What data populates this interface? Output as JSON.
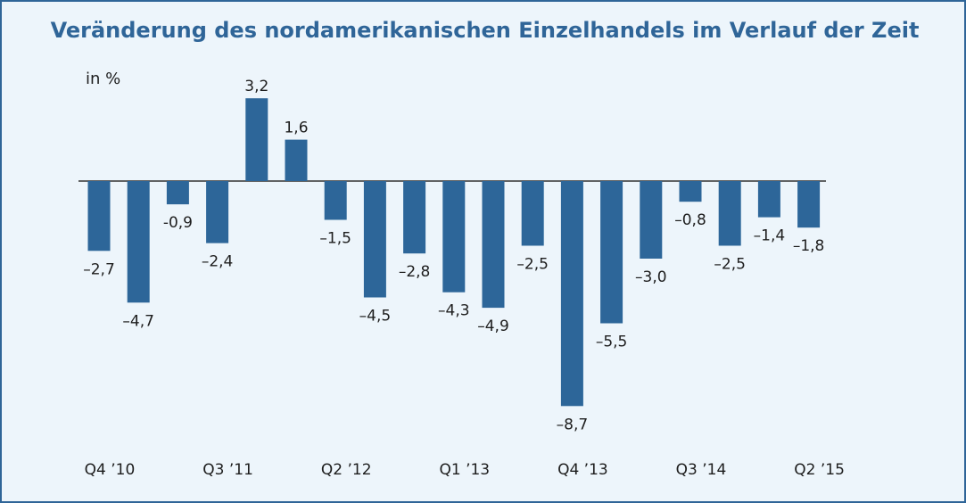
{
  "title": "Veränderung des nordamerikanischen Einzelhandels im Verlauf der Zeit",
  "unit_label": "in %",
  "colors": {
    "bar": "#2d6699",
    "frame": "#2f6598",
    "background": "#edf5fb",
    "axis": "#333333",
    "text": "#1e1e1e"
  },
  "chart_data": {
    "type": "bar",
    "title": "Veränderung des nordamerikanischen Einzelhandels im Verlauf der Zeit",
    "ylabel": "in %",
    "xlabel": "",
    "ylim": [
      -9.5,
      4.2
    ],
    "grid": false,
    "legend": "none",
    "values": [
      -2.7,
      -4.7,
      -0.9,
      -2.4,
      3.2,
      1.6,
      -1.5,
      -4.5,
      -2.8,
      -4.3,
      -4.9,
      -2.5,
      -8.7,
      -5.5,
      -3.0,
      -0.8,
      -2.5,
      -1.4,
      -1.8
    ],
    "value_labels": [
      "–2,7",
      "–4,7",
      "-0,9",
      "–2,4",
      "3,2",
      "1,6",
      "–1,5",
      "–4,5",
      "–2,8",
      "–4,3",
      "–4,9",
      "–2,5",
      "–8,7",
      "–5,5",
      "–3,0",
      "–0,8",
      "–2,5",
      "–1,4",
      "–1,8"
    ],
    "tick_labels": [
      "Q4 ’10",
      "Q3 ’11",
      "Q2 ’12",
      "Q1 ’13",
      "Q4 ’13",
      "Q3 ’14",
      "Q2 ’15"
    ],
    "tick_positions": [
      0,
      3,
      6,
      9,
      12,
      15,
      18
    ]
  }
}
